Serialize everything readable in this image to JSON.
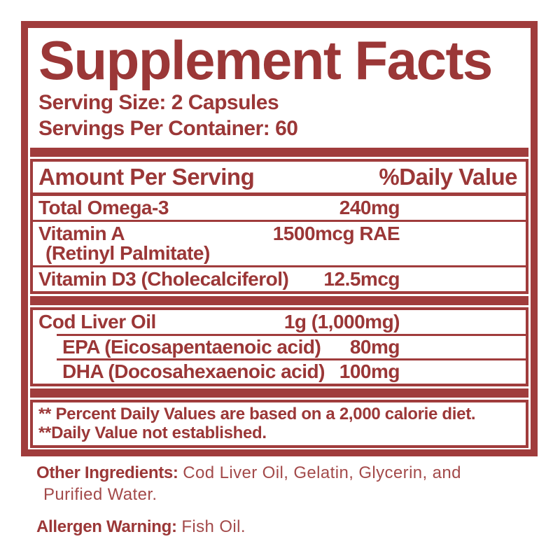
{
  "colors": {
    "accent_red": "#a03c3c",
    "text_red": "#9b3737",
    "body_red": "#a34a4a",
    "background": "#ffffff"
  },
  "label": {
    "title": "Supplement Facts",
    "serving_size": "Serving Size: 2 Capsules",
    "servings_per_container": "Servings Per Container: 60",
    "columns": {
      "amount": "Amount Per Serving",
      "daily_value": "%Daily Value"
    },
    "main_rows": [
      {
        "label": "Total Omega-3",
        "value": "240mg"
      },
      {
        "label": "Vitamin A",
        "label2": "(Retinyl Palmitate)",
        "value": "1500mcg RAE"
      },
      {
        "label": "Vitamin D3 (Cholecalciferol)",
        "value": "12.5mcg"
      }
    ],
    "oil_rows": [
      {
        "label": "Cod Liver Oil",
        "value": "1g (1,000mg)"
      },
      {
        "label": "EPA (Eicosapentaenoic acid)",
        "value": "80mg"
      },
      {
        "label": "DHA (Docosahexaenoic acid)",
        "value": "100mg"
      }
    ],
    "footnotes": [
      "** Percent Daily Values are based on a 2,000 calorie diet.",
      "**Daily Value not established."
    ]
  },
  "footer": {
    "other_ingredients": {
      "label": "Other Ingredients:",
      "line1": "Cod Liver Oil, Gelatin, Glycerin, and",
      "line2": "Purified Water."
    },
    "allergen": {
      "label": "Allergen Warning:",
      "value": "Fish Oil."
    }
  }
}
